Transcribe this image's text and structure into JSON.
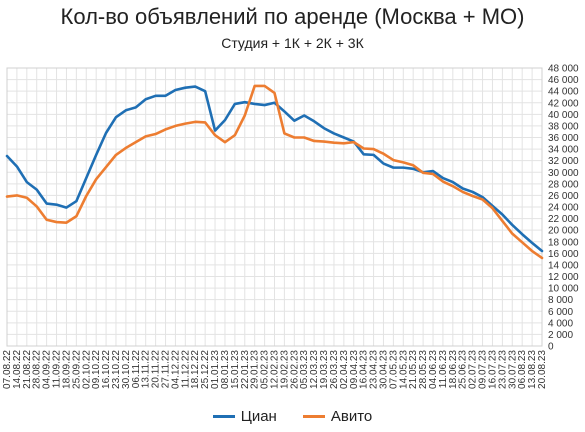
{
  "chart_data": {
    "type": "line",
    "title": "Кол-во объявлений по аренде (Москва + МО)",
    "subtitle": "Студия + 1К + 2К + 3К",
    "ylim": [
      0,
      48000
    ],
    "yticks": [
      0,
      2000,
      4000,
      6000,
      8000,
      10000,
      12000,
      14000,
      16000,
      18000,
      20000,
      22000,
      24000,
      26000,
      28000,
      30000,
      32000,
      34000,
      36000,
      38000,
      40000,
      42000,
      44000,
      46000,
      48000
    ],
    "ytick_labels": [
      "0",
      "2 000",
      "4 000",
      "6 000",
      "8 000",
      "10 000",
      "12 000",
      "14 000",
      "16 000",
      "18 000",
      "20 000",
      "22 000",
      "24 000",
      "26 000",
      "28 000",
      "30 000",
      "32 000",
      "34 000",
      "36 000",
      "38 000",
      "40 000",
      "42 000",
      "44 000",
      "46 000",
      "48 000"
    ],
    "grid": true,
    "legend_position": "bottom",
    "x": [
      "07.08.22",
      "14.08.22",
      "21.08.22",
      "28.08.22",
      "04.09.22",
      "11.09.22",
      "18.09.22",
      "25.09.22",
      "02.10.22",
      "09.10.22",
      "16.10.22",
      "23.10.22",
      "30.10.22",
      "06.11.22",
      "13.11.22",
      "20.11.22",
      "27.11.22",
      "04.12.22",
      "11.12.22",
      "18.12.22",
      "25.12.22",
      "01.01.23",
      "08.01.23",
      "15.01.23",
      "22.01.23",
      "29.01.23",
      "05.02.23",
      "12.02.23",
      "19.02.23",
      "26.02.23",
      "05.03.23",
      "12.03.23",
      "19.03.23",
      "26.03.23",
      "02.04.23",
      "09.04.23",
      "16.04.23",
      "23.04.23",
      "30.04.23",
      "07.05.23",
      "14.05.23",
      "21.05.23",
      "28.05.23",
      "04.06.23",
      "11.06.23",
      "18.06.23",
      "25.06.23",
      "02.07.23",
      "09.07.23",
      "16.07.23",
      "23.07.23",
      "30.07.23",
      "06.08.23",
      "13.08.23",
      "20.08.23"
    ],
    "series": [
      {
        "name": "Циан",
        "color": "#1f6fb4",
        "values": [
          32800,
          31000,
          28300,
          27000,
          24600,
          24400,
          23900,
          25000,
          29000,
          33000,
          36800,
          39500,
          40700,
          41200,
          42600,
          43200,
          43200,
          44200,
          44600,
          44800,
          44000,
          37200,
          39000,
          41800,
          42100,
          41800,
          41600,
          42000,
          40500,
          38900,
          39800,
          38800,
          37600,
          36700,
          36000,
          35300,
          33100,
          33000,
          31500,
          30800,
          30800,
          30600,
          30000,
          30200,
          29000,
          28300,
          27200,
          26600,
          25700,
          24200,
          22700,
          20900,
          19300,
          17800,
          16400
        ]
      },
      {
        "name": "Авито",
        "color": "#ed7d31",
        "values": [
          25800,
          26000,
          25600,
          24100,
          21800,
          21400,
          21300,
          22400,
          25900,
          28800,
          30900,
          33000,
          34200,
          35200,
          36200,
          36600,
          37400,
          38000,
          38400,
          38700,
          38600,
          36400,
          35200,
          36400,
          39800,
          44900,
          44900,
          43700,
          36700,
          36000,
          36000,
          35400,
          35300,
          35100,
          35000,
          35200,
          34100,
          34000,
          33200,
          32100,
          31700,
          31200,
          29900,
          29700,
          28400,
          27600,
          26600,
          25900,
          25300,
          23800,
          21600,
          19400,
          17900,
          16400,
          15200
        ]
      }
    ]
  }
}
